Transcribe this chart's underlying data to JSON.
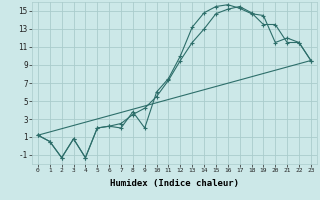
{
  "xlabel": "Humidex (Indice chaleur)",
  "bg_color": "#cce8e8",
  "line_color": "#2d6e6a",
  "grid_color": "#aacccc",
  "xlim": [
    -0.5,
    23.5
  ],
  "ylim": [
    -2,
    16
  ],
  "xticks": [
    0,
    1,
    2,
    3,
    4,
    5,
    6,
    7,
    8,
    9,
    10,
    11,
    12,
    13,
    14,
    15,
    16,
    17,
    18,
    19,
    20,
    21,
    22,
    23
  ],
  "yticks": [
    -1,
    1,
    3,
    5,
    7,
    9,
    11,
    13,
    15
  ],
  "line1_x": [
    0,
    1,
    2,
    3,
    4,
    5,
    6,
    7,
    8,
    9,
    10,
    11,
    12,
    13,
    14,
    15,
    16,
    17,
    18,
    19,
    20,
    21,
    22,
    23
  ],
  "line1_y": [
    1.2,
    0.5,
    -1.3,
    0.8,
    -1.3,
    2.0,
    2.2,
    2.0,
    3.8,
    2.0,
    6.0,
    7.5,
    10.0,
    13.2,
    14.8,
    15.5,
    15.7,
    15.3,
    14.7,
    14.5,
    11.5,
    12.0,
    11.5,
    9.5
  ],
  "line2_x": [
    0,
    1,
    2,
    3,
    4,
    5,
    6,
    7,
    8,
    9,
    10,
    11,
    12,
    13,
    14,
    15,
    16,
    17,
    18,
    19,
    20,
    21,
    22,
    23
  ],
  "line2_y": [
    1.2,
    0.5,
    -1.3,
    0.8,
    -1.3,
    2.0,
    2.2,
    2.5,
    3.5,
    4.2,
    5.5,
    7.3,
    9.5,
    11.5,
    13.0,
    14.7,
    15.2,
    15.5,
    14.8,
    13.5,
    13.5,
    11.5,
    11.5,
    9.5
  ],
  "line3_x": [
    0,
    23
  ],
  "line3_y": [
    1.2,
    9.5
  ]
}
